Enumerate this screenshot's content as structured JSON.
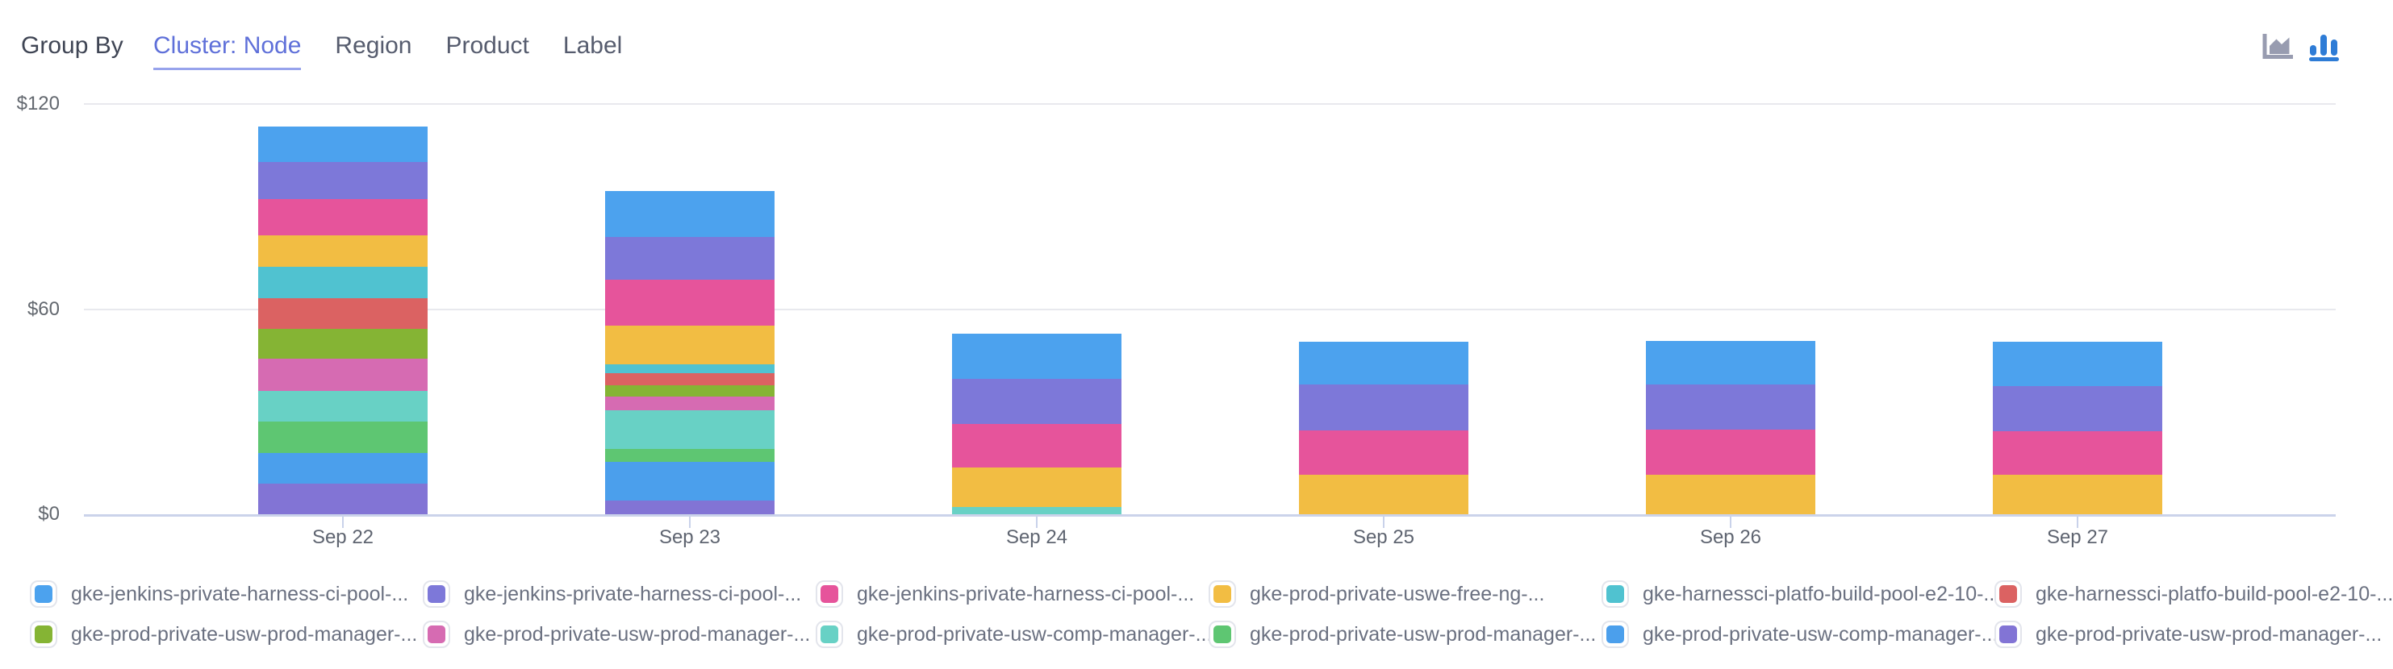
{
  "header": {
    "group_by_label": "Group By",
    "tabs": [
      {
        "label": "Cluster: Node",
        "active": true
      },
      {
        "label": "Region",
        "active": false
      },
      {
        "label": "Product",
        "active": false
      },
      {
        "label": "Label",
        "active": false
      }
    ],
    "chart_type_toggle": [
      {
        "name": "area-chart-icon",
        "active": false,
        "color": "#989cb0"
      },
      {
        "name": "bar-chart-icon",
        "active": true,
        "color": "#2e7cd6"
      }
    ]
  },
  "accent_color": "#5f70d9",
  "chart_data": {
    "type": "bar",
    "stacked": true,
    "stack_order": "first series renders at top of each stack",
    "grid": "horizontal",
    "legend_position": "bottom",
    "currency": "USD",
    "title": "",
    "xlabel": "",
    "ylabel": "",
    "ylim": [
      0,
      120
    ],
    "y_ticks": [
      {
        "label": "$120",
        "value": 120
      },
      {
        "label": "$60",
        "value": 60
      },
      {
        "label": "$0",
        "value": 0
      }
    ],
    "categories": [
      "Sep 22",
      "Sep 23",
      "Sep 24",
      "Sep 25",
      "Sep 26",
      "Sep 27"
    ],
    "series": [
      {
        "name": "gke-jenkins-private-harness-ci-pool-...",
        "color": "#4ca2ee",
        "values": [
          10.3,
          13.3,
          13.0,
          12.6,
          12.6,
          12.9
        ]
      },
      {
        "name": "gke-jenkins-private-harness-ci-pool-...",
        "color": "#7d78d9",
        "values": [
          10.9,
          12.7,
          13.2,
          13.4,
          13.3,
          13.3
        ]
      },
      {
        "name": "gke-jenkins-private-harness-ci-pool-...",
        "color": "#e6549b",
        "values": [
          10.6,
          13.3,
          12.9,
          13.0,
          13.1,
          12.7
        ]
      },
      {
        "name": "gke-prod-private-uswe-free-ng-...",
        "color": "#f2bd43",
        "values": [
          9.1,
          11.4,
          11.5,
          11.5,
          11.6,
          11.5
        ]
      },
      {
        "name": "gke-harnessci-platfo-build-pool-e2-10-...",
        "color": "#50c2d0",
        "values": [
          9.3,
          2.5,
          0,
          0,
          0,
          0
        ]
      },
      {
        "name": "gke-harnessci-platfo-build-pool-e2-10-...",
        "color": "#db6262",
        "values": [
          9.0,
          3.5,
          0,
          0,
          0,
          0
        ]
      },
      {
        "name": "gke-prod-private-usw-prod-manager-...",
        "color": "#85b434",
        "values": [
          8.6,
          3.4,
          0,
          0,
          0,
          0
        ]
      },
      {
        "name": "gke-prod-private-usw-prod-manager-...",
        "color": "#d66bb2",
        "values": [
          9.5,
          4.0,
          0,
          0,
          0,
          0
        ]
      },
      {
        "name": "gke-prod-private-usw-comp-manager-...",
        "color": "#68d1c5",
        "values": [
          9.0,
          11.3,
          2.1,
          0,
          0,
          0
        ]
      },
      {
        "name": "gke-prod-private-usw-prod-manager-...",
        "color": "#5ec672",
        "values": [
          9.1,
          3.9,
          0,
          0,
          0,
          0
        ]
      },
      {
        "name": "gke-prod-private-usw-comp-manager-...",
        "color": "#4b9fec",
        "values": [
          9.0,
          11.1,
          0,
          0,
          0,
          0
        ]
      },
      {
        "name": "gke-prod-private-usw-prod-manager-...",
        "color": "#8274d5",
        "values": [
          8.9,
          4.1,
          0,
          0,
          0,
          0
        ]
      }
    ]
  }
}
